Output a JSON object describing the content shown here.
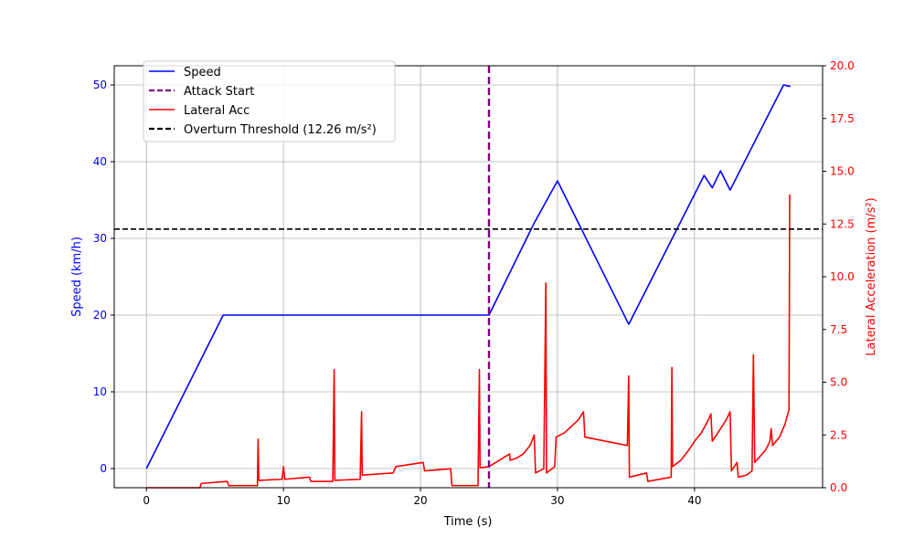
{
  "chart_data": {
    "type": "line",
    "xlabel": "Time (s)",
    "ylabel_left": "Speed (km/h)",
    "ylabel_right": "Lateral Acceleration (m/s²)",
    "xlim": [
      -2.35,
      49.35
    ],
    "ylim_left": [
      -2.5,
      52.5
    ],
    "ylim_right": [
      0,
      20
    ],
    "x_ticks": [
      0,
      10,
      20,
      30,
      40
    ],
    "y_ticks_left": [
      0,
      10,
      20,
      30,
      40,
      50
    ],
    "y_ticks_right": [
      0.0,
      2.5,
      5.0,
      7.5,
      10.0,
      12.5,
      15.0,
      17.5,
      20.0
    ],
    "grid": true,
    "legend_position": "top-left",
    "colors": {
      "speed": "#0000ff",
      "attack": "#800080",
      "lateral": "#ff0000",
      "threshold": "#000000",
      "left_axis": "#0000ff",
      "right_axis": "#ff0000"
    },
    "attack_start_time": 25.0,
    "overturn_threshold": 12.26,
    "series": [
      {
        "name": "Speed",
        "axis": "left",
        "points": [
          [
            0,
            0
          ],
          [
            5.6,
            20
          ],
          [
            25.0,
            20
          ],
          [
            28.3,
            32
          ],
          [
            30.0,
            37.5
          ],
          [
            35.2,
            18.8
          ],
          [
            40.7,
            38.2
          ],
          [
            41.3,
            36.6
          ],
          [
            41.9,
            38.8
          ],
          [
            42.6,
            36.3
          ],
          [
            46.5,
            50
          ],
          [
            47.0,
            49.8
          ]
        ]
      },
      {
        "name": "Lateral Acc",
        "axis": "right",
        "points": [
          [
            0,
            0
          ],
          [
            3.9,
            0
          ],
          [
            4.0,
            0.2
          ],
          [
            5.9,
            0.3
          ],
          [
            6.0,
            0.1
          ],
          [
            8.1,
            0.1
          ],
          [
            8.15,
            2.3
          ],
          [
            8.2,
            0.35
          ],
          [
            9.9,
            0.4
          ],
          [
            10.0,
            1.0
          ],
          [
            10.1,
            0.4
          ],
          [
            11.9,
            0.5
          ],
          [
            12.0,
            0.3
          ],
          [
            13.6,
            0.3
          ],
          [
            13.7,
            5.6
          ],
          [
            13.75,
            0.35
          ],
          [
            15.6,
            0.4
          ],
          [
            15.7,
            3.6
          ],
          [
            15.75,
            0.6
          ],
          [
            18.0,
            0.7
          ],
          [
            18.2,
            1.0
          ],
          [
            20.2,
            1.2
          ],
          [
            20.3,
            0.8
          ],
          [
            22.2,
            0.9
          ],
          [
            22.3,
            0.1
          ],
          [
            24.2,
            0.1
          ],
          [
            24.3,
            5.6
          ],
          [
            24.35,
            0.95
          ],
          [
            25.0,
            1.0
          ],
          [
            25.5,
            1.2
          ],
          [
            26.5,
            1.6
          ],
          [
            26.55,
            1.3
          ],
          [
            27.0,
            1.4
          ],
          [
            27.5,
            1.6
          ],
          [
            28.0,
            2.0
          ],
          [
            28.3,
            2.5
          ],
          [
            28.4,
            0.7
          ],
          [
            29.0,
            0.9
          ],
          [
            29.15,
            9.7
          ],
          [
            29.2,
            0.7
          ],
          [
            29.8,
            1.0
          ],
          [
            29.9,
            2.4
          ],
          [
            30.5,
            2.6
          ],
          [
            31.0,
            2.9
          ],
          [
            31.5,
            3.2
          ],
          [
            31.9,
            3.6
          ],
          [
            32.0,
            2.4
          ],
          [
            35.1,
            2.0
          ],
          [
            35.2,
            5.3
          ],
          [
            35.25,
            0.5
          ],
          [
            36.5,
            0.7
          ],
          [
            36.6,
            0.3
          ],
          [
            37.0,
            0.35
          ],
          [
            38.3,
            0.5
          ],
          [
            38.35,
            5.7
          ],
          [
            38.4,
            1.0
          ],
          [
            39.0,
            1.3
          ],
          [
            39.6,
            1.8
          ],
          [
            40.0,
            2.2
          ],
          [
            40.5,
            2.6
          ],
          [
            41.0,
            3.2
          ],
          [
            41.2,
            3.5
          ],
          [
            41.3,
            2.2
          ],
          [
            41.8,
            2.7
          ],
          [
            42.3,
            3.2
          ],
          [
            42.6,
            3.6
          ],
          [
            42.7,
            0.8
          ],
          [
            43.1,
            1.2
          ],
          [
            43.2,
            0.5
          ],
          [
            43.8,
            0.6
          ],
          [
            44.2,
            0.8
          ],
          [
            44.3,
            6.3
          ],
          [
            44.4,
            1.2
          ],
          [
            44.8,
            1.5
          ],
          [
            45.2,
            1.8
          ],
          [
            45.5,
            2.2
          ],
          [
            45.6,
            2.8
          ],
          [
            45.7,
            2.0
          ],
          [
            46.2,
            2.4
          ],
          [
            46.6,
            3.0
          ],
          [
            46.9,
            3.7
          ],
          [
            46.95,
            13.9
          ]
        ]
      }
    ]
  },
  "legend": {
    "items": [
      {
        "label": "Speed",
        "color": "#0000ff",
        "dashed": false
      },
      {
        "label": "Attack Start",
        "color": "#800080",
        "dashed": true
      },
      {
        "label": "Lateral Acc",
        "color": "#ff0000",
        "dashed": false
      },
      {
        "label": "Overturn Threshold (12.26 m/s²)",
        "color": "#000000",
        "dashed": true
      }
    ]
  }
}
